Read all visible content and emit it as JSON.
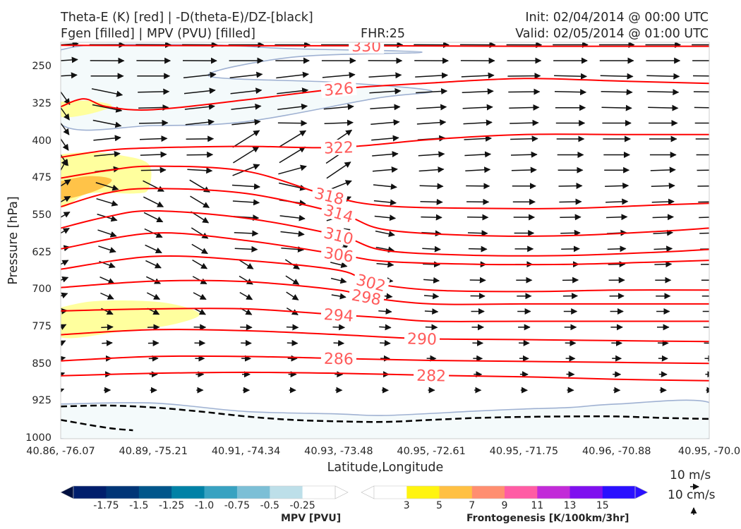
{
  "header": {
    "line1_left": "Theta-E (K) [red] | -D(theta-E)/DZ-[black]",
    "line2_left": "Fgen [filled] | MPV (PVU) [filled]",
    "fhr": "FHR:25",
    "init": "Init: 02/04/2014 @ 00:00 UTC",
    "valid": "Valid: 02/05/2014 @ 01:00 UTC"
  },
  "colors": {
    "theta_e": "#ff0000",
    "theta_e_label": "#ff5a5a",
    "vectors": "#111111",
    "dthetae_dz": "#000000",
    "mpv_outline": "#9fb1d2",
    "mpv_fill": "#f4fafb"
  },
  "chart_data": {
    "type": "cross-section",
    "ylabel": "Pressure [hPa]",
    "xlabel": "Latitude,Longitude",
    "ylim": [
      1000,
      200
    ],
    "yscale": "linear",
    "yticks": [
      250,
      325,
      400,
      475,
      550,
      625,
      700,
      775,
      850,
      925,
      1000
    ],
    "ytick_labels": [
      "250",
      "325",
      "400",
      "475",
      "550",
      "625",
      "700",
      "775",
      "850",
      "925",
      "1000"
    ],
    "xticks": [
      "40.86, -76.07",
      "40.89, -75.21",
      "40.91, -74.34",
      "40.93, -73.48",
      "40.95, -72.61",
      "40.95, -71.75",
      "40.96, -70.88",
      "40.95, -70.0"
    ],
    "theta_e": {
      "name": "Theta-E (K)",
      "levels": [
        {
          "value": 330,
          "label": "330",
          "label_x": 3.3,
          "pts": [
            [
              0,
              206
            ],
            [
              2,
              207
            ],
            [
              3.3,
              207
            ],
            [
              5,
              208
            ],
            [
              7,
              208
            ]
          ]
        },
        {
          "value": 326,
          "label": "326",
          "label_x": 3.0,
          "pts": [
            [
              0,
              330
            ],
            [
              0.25,
              314
            ],
            [
              0.5,
              330
            ],
            [
              1,
              336
            ],
            [
              2,
              316
            ],
            [
              3,
              294
            ],
            [
              4,
              282
            ],
            [
              5,
              273
            ],
            [
              6,
              278
            ],
            [
              7,
              283
            ]
          ]
        },
        {
          "value": 322,
          "label": "322",
          "label_x": 3.0,
          "pts": [
            [
              0,
              432
            ],
            [
              0.5,
              418
            ],
            [
              1,
              413
            ],
            [
              2,
              410
            ],
            [
              3,
              412
            ],
            [
              4,
              396
            ],
            [
              5,
              386
            ],
            [
              6,
              386
            ],
            [
              7,
              386
            ]
          ]
        },
        {
          "value": 318,
          "label": "318",
          "label_x": 2.9,
          "pts": [
            [
              0,
              474
            ],
            [
              0.5,
              459
            ],
            [
              1,
              450
            ],
            [
              2,
              460
            ],
            [
              2.9,
              510
            ],
            [
              3.5,
              530
            ],
            [
              4.5,
              535
            ],
            [
              5.5,
              535
            ],
            [
              6.5,
              528
            ],
            [
              7,
              525
            ]
          ]
        },
        {
          "value": 314,
          "label": "314",
          "label_x": 3.0,
          "pts": [
            [
              0,
              532
            ],
            [
              0.5,
              504
            ],
            [
              1,
              495
            ],
            [
              2,
              505
            ],
            [
              3,
              545
            ],
            [
              3.5,
              578
            ],
            [
              4.5,
              590
            ],
            [
              5.5,
              590
            ],
            [
              6.5,
              581
            ],
            [
              7,
              575
            ]
          ]
        },
        {
          "value": 310,
          "label": "310",
          "label_x": 3.0,
          "pts": [
            [
              0,
              575
            ],
            [
              0.5,
              552
            ],
            [
              1,
              540
            ],
            [
              2,
              555
            ],
            [
              3,
              590
            ],
            [
              3.5,
              620
            ],
            [
              4.5,
              630
            ],
            [
              5.5,
              630
            ],
            [
              6.5,
              623
            ],
            [
              7,
              618
            ]
          ]
        },
        {
          "value": 306,
          "label": "306",
          "label_x": 3.0,
          "pts": [
            [
              0,
              617
            ],
            [
              1,
              585
            ],
            [
              2,
              600
            ],
            [
              3,
              628
            ],
            [
              3.5,
              642
            ],
            [
              4.5,
              648
            ],
            [
              5.5,
              648
            ],
            [
              6.5,
              643
            ],
            [
              7,
              640
            ]
          ]
        },
        {
          "value": 302,
          "label": "302",
          "label_x": 3.35,
          "pts": [
            [
              0,
              658
            ],
            [
              1,
              632
            ],
            [
              2,
              640
            ],
            [
              3,
              660
            ],
            [
              3.35,
              685
            ],
            [
              4,
              700
            ],
            [
              5,
              703
            ],
            [
              6,
              700
            ],
            [
              7,
              700
            ]
          ]
        },
        {
          "value": 298,
          "label": "298",
          "label_x": 3.3,
          "pts": [
            [
              0,
              695
            ],
            [
              1,
              682
            ],
            [
              2,
              683
            ],
            [
              3,
              700
            ],
            [
              3.3,
              714
            ],
            [
              4,
              728
            ],
            [
              5,
              728
            ],
            [
              6,
              728
            ],
            [
              7,
              728
            ]
          ]
        },
        {
          "value": 294,
          "label": "294",
          "label_x": 3.0,
          "pts": [
            [
              0,
              742
            ],
            [
              1,
              738
            ],
            [
              2,
              738
            ],
            [
              3,
              750
            ],
            [
              3.5,
              756
            ],
            [
              4,
              763
            ],
            [
              5,
              763
            ],
            [
              6,
              763
            ],
            [
              7,
              763
            ]
          ]
        },
        {
          "value": 290,
          "label": "290",
          "label_x": 3.9,
          "pts": [
            [
              0,
              790
            ],
            [
              1,
              780
            ],
            [
              2,
              782
            ],
            [
              3,
              790
            ],
            [
              3.9,
              798
            ],
            [
              5,
              800
            ],
            [
              6,
              802
            ],
            [
              7,
              804
            ]
          ]
        },
        {
          "value": 286,
          "label": "286",
          "label_x": 3.0,
          "pts": [
            [
              0,
              843
            ],
            [
              1,
              834
            ],
            [
              2,
              834
            ],
            [
              3,
              838
            ],
            [
              4,
              842
            ],
            [
              5,
              844
            ],
            [
              6,
              846
            ],
            [
              7,
              848
            ]
          ]
        },
        {
          "value": 282,
          "label": "282",
          "label_x": 4.0,
          "pts": [
            [
              0,
              873
            ],
            [
              1,
              868
            ],
            [
              2,
              866
            ],
            [
              3,
              868
            ],
            [
              4,
              872
            ],
            [
              5,
              875
            ],
            [
              6,
              880
            ],
            [
              7,
              883
            ]
          ]
        }
      ]
    },
    "dthetae_dz_zero": [
      {
        "pts": [
          [
            0,
            935
          ],
          [
            0.5,
            933
          ],
          [
            1,
            937
          ],
          [
            1.5,
            945
          ],
          [
            2,
            955
          ],
          [
            2.5,
            962
          ],
          [
            3,
            965
          ],
          [
            3.5,
            966
          ],
          [
            4,
            962
          ],
          [
            4.5,
            958
          ],
          [
            5,
            956
          ],
          [
            5.5,
            955
          ],
          [
            6,
            955
          ],
          [
            6.5,
            958
          ],
          [
            7,
            960
          ]
        ]
      },
      {
        "pts": [
          [
            0,
            962
          ],
          [
            0.5,
            978
          ],
          [
            0.78,
            983
          ]
        ]
      }
    ],
    "mpv_negative_regions": [
      {
        "pts": [
          [
            0,
            215
          ],
          [
            0.4,
            205
          ],
          [
            1.6,
            205
          ],
          [
            2,
            208
          ],
          [
            2.5,
            213
          ],
          [
            3.9,
            220
          ],
          [
            2.5,
            230
          ],
          [
            1.6,
            268
          ],
          [
            3,
            281
          ],
          [
            4.0,
            298
          ],
          [
            3.4,
            313
          ],
          [
            2,
            360
          ],
          [
            1,
            368
          ],
          [
            0,
            365
          ]
        ]
      },
      {
        "pts": [
          [
            0,
            930
          ],
          [
            1,
            928
          ],
          [
            2,
            945
          ],
          [
            3,
            950
          ],
          [
            3.5,
            953
          ],
          [
            4.5,
            944
          ],
          [
            5,
            940
          ],
          [
            5.5,
            937
          ],
          [
            6,
            930
          ],
          [
            7,
            927
          ],
          [
            7,
            1000
          ],
          [
            0,
            1000
          ]
        ]
      }
    ],
    "frontogenesis_regions": [
      {
        "level": 3,
        "pts": [
          [
            0,
            320
          ],
          [
            0.3,
            318
          ],
          [
            0.55,
            328
          ],
          [
            0.3,
            345
          ],
          [
            0,
            350
          ]
        ]
      },
      {
        "level": 3,
        "pts": [
          [
            0,
            426
          ],
          [
            0.3,
            422
          ],
          [
            0.65,
            428
          ],
          [
            0.95,
            446
          ],
          [
            0.95,
            495
          ],
          [
            0.8,
            505
          ],
          [
            0.3,
            505
          ],
          [
            0,
            530
          ]
        ]
      },
      {
        "level": 5,
        "pts": [
          [
            0,
            480
          ],
          [
            0.3,
            470
          ],
          [
            0.55,
            477
          ],
          [
            0.4,
            498
          ],
          [
            0.1,
            515
          ],
          [
            0,
            515
          ]
        ]
      },
      {
        "level": 3,
        "pts": [
          [
            0,
            735
          ],
          [
            0.4,
            722
          ],
          [
            1.1,
            725
          ],
          [
            1.5,
            748
          ],
          [
            1.2,
            770
          ],
          [
            0.7,
            782
          ],
          [
            0,
            795
          ]
        ]
      }
    ],
    "vector_columns": [
      0,
      0.5,
      1,
      1.5,
      2,
      2.5,
      3,
      3.5,
      4,
      4.5,
      5,
      5.5,
      6,
      6.5,
      7
    ],
    "vector_levels": [
      205,
      237,
      268,
      300,
      332,
      363,
      395,
      427,
      458,
      490,
      522,
      553,
      585,
      617,
      648,
      680,
      712,
      743,
      775,
      807,
      838,
      870,
      902
    ],
    "vector_key": {
      "u_label": "10 m/s",
      "w_label": "10 cm/s"
    },
    "colorbars": [
      {
        "name": "MPV [PVU]",
        "tick_labels": [
          "-1.75",
          "-1.5",
          "-1.25",
          "-1.0",
          "-0.75",
          "-0.5",
          "-0.25"
        ],
        "colors": [
          "#001e6c",
          "#003577",
          "#00568b",
          "#0081a6",
          "#38a2c1",
          "#7cbfd6",
          "#bddfe9",
          "#ffffff"
        ]
      },
      {
        "name": "Frontogenesis [K/100km/3hr]",
        "tick_labels": [
          "3",
          "5",
          "7",
          "9",
          "11",
          "13",
          "15"
        ],
        "colors": [
          "#ffffff",
          "#fff410",
          "#ffc043",
          "#ff8e70",
          "#ff5ca4",
          "#c22bd8",
          "#7f10ef",
          "#2a10ff"
        ]
      }
    ]
  }
}
